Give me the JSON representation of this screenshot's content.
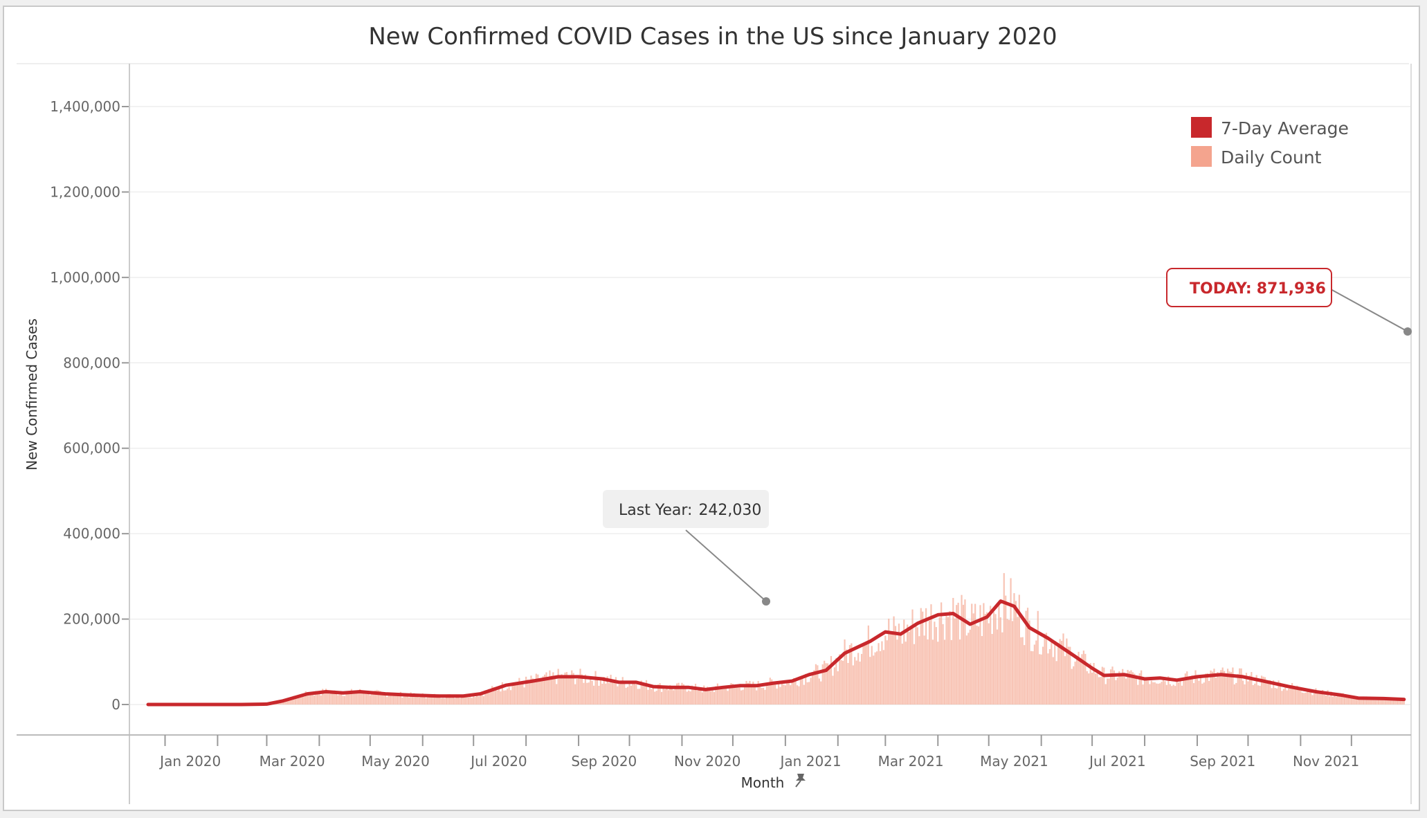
{
  "chart_data": {
    "type": "area",
    "title": "New Confirmed COVID Cases in the US since January 2020",
    "xlabel": "Month",
    "ylabel": "New Confirmed Cases",
    "ylim": [
      0,
      1400000
    ],
    "y_ticks": [
      {
        "value": 0,
        "label": "0"
      },
      {
        "value": 200000,
        "label": "200,000"
      },
      {
        "value": 400000,
        "label": "400,000"
      },
      {
        "value": 600000,
        "label": "600,000"
      },
      {
        "value": 800000,
        "label": "800,000"
      },
      {
        "value": 1000000,
        "label": "1,000,000"
      },
      {
        "value": 1200000,
        "label": "1,200,000"
      },
      {
        "value": 1400000,
        "label": "1,400,000"
      }
    ],
    "x_ticks": [
      "Jan 2020",
      "Mar 2020",
      "May 2020",
      "Jul 2020",
      "Sep 2020",
      "Nov 2020",
      "Jan 2021",
      "Mar 2021",
      "May 2021",
      "Jul 2021",
      "Sep 2021",
      "Nov 2021"
    ],
    "x_range": [
      "2019-12-22",
      "2022-01-06"
    ],
    "grid": true,
    "legend_position": "top-right",
    "colors": {
      "average": "#c8282c",
      "daily": "#f4a48e"
    },
    "series": [
      {
        "name": "7-Day Average",
        "points": [
          [
            "2019-12-22",
            0
          ],
          [
            "2020-01-15",
            0
          ],
          [
            "2020-02-15",
            0
          ],
          [
            "2020-03-01",
            1000
          ],
          [
            "2020-03-10",
            8000
          ],
          [
            "2020-03-25",
            25000
          ],
          [
            "2020-04-05",
            30000
          ],
          [
            "2020-04-15",
            27000
          ],
          [
            "2020-04-25",
            30000
          ],
          [
            "2020-05-10",
            25000
          ],
          [
            "2020-05-25",
            22000
          ],
          [
            "2020-06-10",
            20000
          ],
          [
            "2020-06-25",
            20000
          ],
          [
            "2020-07-05",
            25000
          ],
          [
            "2020-07-20",
            45000
          ],
          [
            "2020-08-05",
            55000
          ],
          [
            "2020-08-20",
            65000
          ],
          [
            "2020-09-01",
            65000
          ],
          [
            "2020-09-15",
            60000
          ],
          [
            "2020-09-25",
            52000
          ],
          [
            "2020-10-05",
            52000
          ],
          [
            "2020-10-15",
            42000
          ],
          [
            "2020-10-25",
            40000
          ],
          [
            "2020-11-05",
            40000
          ],
          [
            "2020-11-15",
            35000
          ],
          [
            "2020-11-25",
            40000
          ],
          [
            "2020-12-05",
            44000
          ],
          [
            "2020-12-15",
            44000
          ],
          [
            "2020-12-25",
            50000
          ],
          [
            "2021-01-05",
            55000
          ],
          [
            "2021-01-15",
            70000
          ],
          [
            "2021-01-25",
            80000
          ],
          [
            "2021-02-05",
            120000
          ],
          [
            "2021-02-20",
            148000
          ],
          [
            "2021-03-01",
            170000
          ],
          [
            "2021-03-10",
            165000
          ],
          [
            "2021-03-20",
            190000
          ],
          [
            "2021-04-01",
            210000
          ],
          [
            "2021-04-10",
            213000
          ],
          [
            "2021-04-20",
            188000
          ],
          [
            "2021-04-30",
            205000
          ],
          [
            "2021-05-08",
            242030
          ],
          [
            "2021-05-16",
            230000
          ],
          [
            "2021-05-25",
            180000
          ],
          [
            "2021-06-05",
            155000
          ],
          [
            "2021-06-20",
            115000
          ],
          [
            "2021-07-01",
            85000
          ],
          [
            "2021-07-08",
            68000
          ],
          [
            "2021-07-20",
            70000
          ],
          [
            "2021-08-01",
            60000
          ],
          [
            "2021-08-10",
            62000
          ],
          [
            "2021-08-20",
            57000
          ],
          [
            "2021-09-01",
            65000
          ],
          [
            "2021-09-15",
            70000
          ],
          [
            "2021-09-28",
            65000
          ],
          [
            "2021-10-10",
            55000
          ],
          [
            "2021-10-25",
            42000
          ],
          [
            "2021-11-10",
            30000
          ],
          [
            "2021-11-25",
            22000
          ],
          [
            "2021-12-05",
            15000
          ],
          [
            "2021-12-20",
            14000
          ],
          [
            "2022-01-01",
            12000
          ]
        ]
      },
      {
        "name": "Daily Count"
      }
    ],
    "annotations": [
      {
        "label": "Last Year:",
        "value_text": "242,030",
        "value": 242030
      },
      {
        "label": "TODAY:",
        "value_text": "871,936",
        "value": 871936
      }
    ]
  }
}
